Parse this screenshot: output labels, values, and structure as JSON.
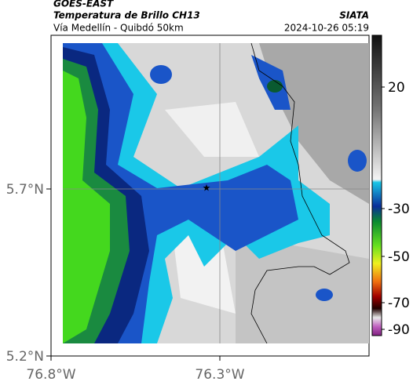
{
  "header": {
    "source": "GOES-EAST",
    "title": "Temperatura de Brillo CH13",
    "subtitle": "Vía Medellín - Quibdó 50km",
    "agency": "SIATA",
    "timestamp": "2024-10-26 05:19"
  },
  "axes": {
    "lat_labels": [
      "5.7°N",
      "5.2°N"
    ],
    "lon_labels": [
      "76.8°W",
      "76.3°W"
    ]
  },
  "colorbar": {
    "ticks": [
      "20",
      "-30",
      "-50",
      "-70",
      "-90"
    ]
  }
}
